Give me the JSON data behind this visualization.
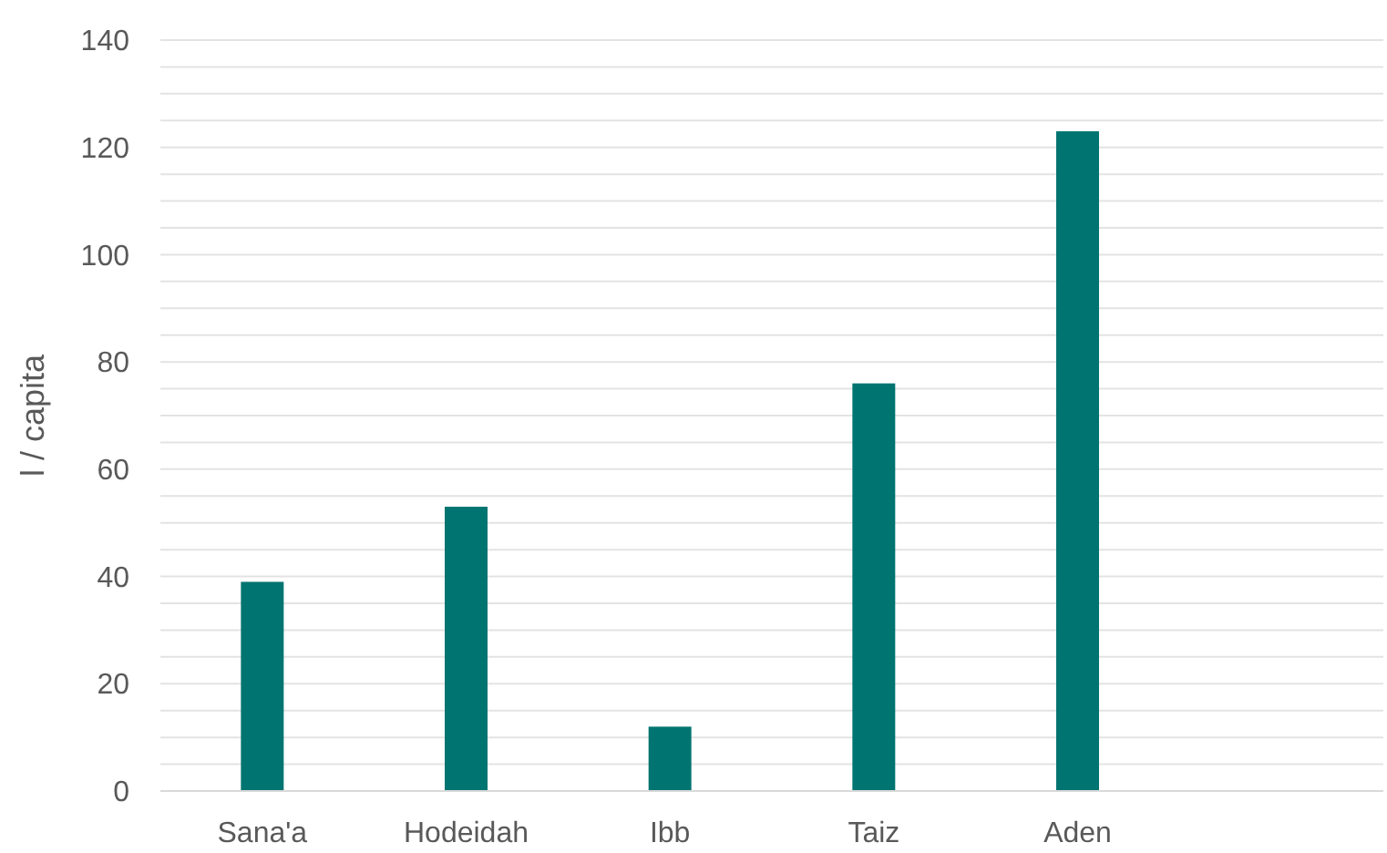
{
  "chart_data": {
    "type": "bar",
    "ylabel": "l / capita",
    "categories": [
      "Sana'a",
      "Hodeidah",
      "Ibb",
      "Taiz",
      "Aden",
      null
    ],
    "values": [
      39,
      53,
      12,
      76,
      123,
      null
    ],
    "color": "#007470",
    "ylim": [
      0,
      140
    ],
    "yticks": [
      0,
      {
        "value": 5,
        "label": null
      },
      {
        "value": 10,
        "label": null
      },
      {
        "value": 15,
        "label": null
      },
      20,
      {
        "value": 25,
        "label": null
      },
      {
        "value": 30,
        "label": null
      },
      {
        "value": 35,
        "label": null
      },
      40,
      {
        "value": 45,
        "label": null
      },
      {
        "value": 50,
        "label": null
      },
      {
        "value": 55,
        "label": null
      },
      60,
      {
        "value": 65,
        "label": null
      },
      {
        "value": 70,
        "label": null
      },
      {
        "value": 75,
        "label": null
      },
      80,
      {
        "value": 85,
        "label": null
      },
      {
        "value": 90,
        "label": null
      },
      {
        "value": 95,
        "label": null
      },
      100,
      {
        "value": 105,
        "label": null
      },
      {
        "value": 110,
        "label": null
      },
      {
        "value": 115,
        "label": null
      },
      120,
      {
        "value": 125,
        "label": null
      },
      {
        "value": 130,
        "label": null
      },
      {
        "value": 135,
        "label": null
      },
      140
    ],
    "grid": "y"
  }
}
